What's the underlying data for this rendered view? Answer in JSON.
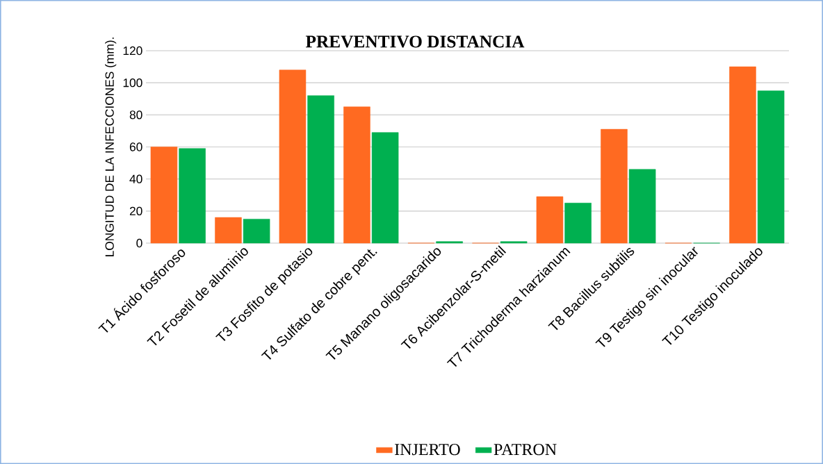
{
  "chart_data": {
    "type": "bar",
    "title": "PREVENTIVO DISTANCIA",
    "ylabel": "LONGITUD DE LA INFECCIONES (mm).",
    "categories": [
      "T1 Ácido fosforoso",
      "T2 Fosetil de aluminio",
      "T3 Fosfito de potasio",
      "T4 Sulfato de cobre pent.",
      "T5 Manano oligosacarido",
      "T6 Acibenzolar-S-metil",
      "T7 Trichoderma harzianum",
      "T8 Bacillus subtilis",
      "T9 Testigo sin inocular",
      "T10 Testigo inoculado"
    ],
    "series": [
      {
        "name": "INJERTO",
        "color": "#ff6a21",
        "values": [
          60,
          16,
          108,
          85,
          0,
          0,
          29,
          71,
          0,
          110
        ]
      },
      {
        "name": "PATRON",
        "color": "#00b050",
        "values": [
          59,
          15,
          92,
          69,
          1,
          1,
          25,
          46,
          0,
          95
        ]
      }
    ],
    "ylim": [
      0,
      120
    ],
    "yticks": [
      0,
      20,
      40,
      60,
      80,
      100,
      120
    ],
    "grid": "y",
    "legend": "bottom"
  }
}
